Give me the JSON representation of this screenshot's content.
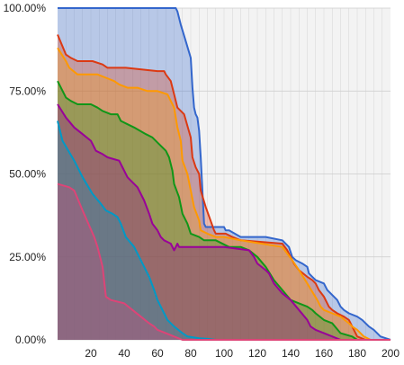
{
  "chart_data": {
    "type": "area",
    "title": "",
    "xlabel": "",
    "ylabel": "",
    "xlim": [
      0,
      200
    ],
    "ylim": [
      0,
      100
    ],
    "x_ticks": [
      20,
      40,
      60,
      80,
      100,
      120,
      140,
      160,
      180,
      200
    ],
    "y_ticks": [
      0,
      25,
      50,
      75,
      100
    ],
    "y_tick_labels": [
      "0.00%",
      "25.00%",
      "50.00%",
      "75.00%",
      "100.00%"
    ],
    "grid": true,
    "legend": "none",
    "series": [
      {
        "color": "#3366cc",
        "x": [
          0,
          71,
          72,
          74,
          77,
          80,
          81,
          82,
          83,
          84,
          85,
          86,
          88,
          89,
          100,
          101,
          103,
          110,
          125,
          135,
          139,
          141,
          143,
          147,
          150,
          151,
          153,
          155,
          160,
          162,
          168,
          170,
          172,
          175,
          180,
          183,
          185,
          187,
          190,
          194,
          200
        ],
        "y": [
          100,
          100,
          99,
          95,
          90,
          85,
          76,
          70,
          68,
          67,
          63,
          55,
          35,
          34,
          34,
          33,
          33,
          31,
          31,
          30,
          28,
          25,
          24,
          23,
          22,
          20,
          19,
          18,
          17,
          15,
          12,
          10,
          9,
          8,
          7,
          6,
          5,
          4,
          3,
          1,
          0
        ]
      },
      {
        "color": "#dc3912",
        "x": [
          0,
          5,
          8,
          12,
          21,
          27,
          30,
          33,
          37,
          41,
          60,
          64,
          65,
          68,
          70,
          72,
          76,
          80,
          81,
          83,
          85,
          86,
          89,
          94,
          95,
          101,
          105,
          110,
          135,
          138,
          140,
          142,
          145,
          150,
          153,
          155,
          157,
          160,
          163,
          165,
          168,
          172,
          175,
          178,
          180,
          185,
          188,
          200
        ],
        "y": [
          92,
          86,
          85,
          84,
          84,
          83,
          82,
          82,
          82,
          82,
          81,
          81,
          80,
          78,
          74,
          70,
          68,
          61,
          55,
          52,
          50,
          45,
          40,
          33,
          32,
          32,
          31,
          30,
          29,
          27,
          25,
          23,
          21,
          19,
          18,
          17,
          15,
          13,
          10,
          9,
          8,
          7,
          6,
          3,
          1,
          0,
          0,
          0
        ]
      },
      {
        "color": "#ff9900",
        "x": [
          0,
          5,
          7,
          12,
          24,
          29,
          34,
          37,
          42,
          48,
          54,
          60,
          66,
          68,
          70,
          72,
          74,
          75,
          78,
          80,
          82,
          85,
          86,
          90,
          95,
          100,
          110,
          135,
          138,
          141,
          145,
          150,
          156,
          158,
          160,
          165,
          170,
          175,
          177,
          180,
          184,
          188,
          190,
          200
        ],
        "y": [
          88,
          84,
          82,
          80,
          80,
          79,
          78,
          77,
          76,
          76,
          75,
          75,
          74,
          72,
          70,
          64,
          60,
          54,
          50,
          45,
          40,
          36,
          33,
          32,
          31,
          31,
          30,
          28,
          26,
          24,
          21,
          17,
          12,
          10,
          9,
          8,
          7,
          5,
          4,
          3,
          1,
          0,
          0,
          0
        ]
      },
      {
        "color": "#109618",
        "x": [
          0,
          5,
          8,
          12,
          20,
          24,
          27,
          32,
          36,
          38,
          42,
          46,
          53,
          57,
          61,
          65,
          67,
          69,
          70,
          73,
          75,
          78,
          80,
          85,
          88,
          90,
          95,
          103,
          110,
          115,
          120,
          125,
          130,
          135,
          140,
          145,
          150,
          153,
          155,
          160,
          165,
          170,
          177,
          180,
          200
        ],
        "y": [
          78,
          73,
          72,
          71,
          71,
          70,
          69,
          68,
          68,
          66,
          65,
          64,
          62,
          61,
          59,
          57,
          55,
          51,
          47,
          43,
          38,
          35,
          32,
          31,
          30,
          30,
          30,
          28,
          28,
          27,
          25,
          22,
          18,
          15,
          12,
          11,
          10,
          9,
          8,
          6,
          5,
          2,
          1,
          0,
          0
        ]
      },
      {
        "color": "#990099",
        "x": [
          0,
          5,
          10,
          15,
          20,
          23,
          27,
          30,
          37,
          40,
          42,
          48,
          52,
          55,
          57,
          60,
          62,
          64,
          68,
          70,
          72,
          73,
          78,
          83,
          90,
          100,
          115,
          118,
          120,
          125,
          127,
          130,
          135,
          140,
          145,
          150,
          152,
          155,
          160,
          165,
          170,
          200
        ],
        "y": [
          71,
          67,
          64,
          62,
          60,
          57,
          56,
          55,
          54,
          51,
          49,
          46,
          42,
          38,
          35,
          33,
          31,
          30,
          29,
          27,
          29,
          28,
          28,
          28,
          28,
          28,
          27,
          25,
          23,
          21,
          20,
          17,
          14,
          12,
          9,
          6,
          4,
          3,
          2,
          1,
          0,
          0
        ]
      },
      {
        "color": "#0099c6",
        "x": [
          0,
          3,
          10,
          15,
          21,
          26,
          29,
          33,
          36,
          38,
          41,
          46,
          50,
          55,
          58,
          60,
          64,
          66,
          70,
          75,
          78,
          85,
          90,
          95,
          200
        ],
        "y": [
          66,
          60,
          54,
          49,
          44,
          41,
          39,
          38,
          37,
          35,
          31,
          28,
          24,
          19,
          15,
          12,
          8,
          6,
          4,
          2,
          1,
          0.5,
          0.3,
          0,
          0
        ]
      },
      {
        "color": "#dd4477",
        "x": [
          0,
          7,
          10,
          15,
          22,
          24,
          27,
          29,
          32,
          40,
          45,
          50,
          55,
          58,
          60,
          65,
          70,
          75,
          200
        ],
        "y": [
          47,
          46,
          45,
          39,
          31,
          28,
          22,
          13,
          12,
          11,
          9,
          7,
          5,
          4,
          3,
          2,
          1,
          0,
          0
        ]
      }
    ]
  }
}
